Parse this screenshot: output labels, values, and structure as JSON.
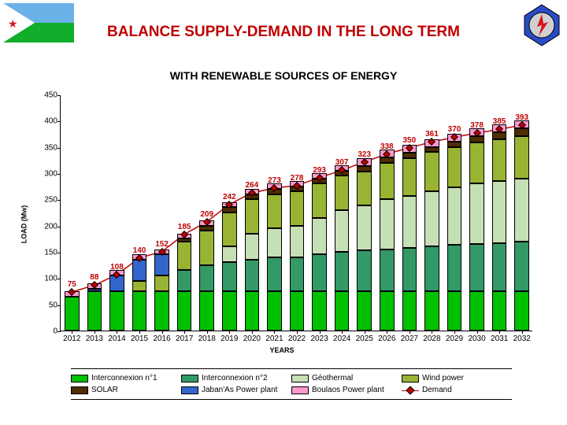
{
  "title": "BALANCE SUPPLY-DEMAND IN THE LONG TERM",
  "subtitle": "WITH RENEWABLE SOURCES OF ENERGY",
  "title_color": "#c00000",
  "subtitle_color": "#000000",
  "chart": {
    "type": "stacked-bar-with-line",
    "y_label": "LOAD (Mw)",
    "x_label": "YEARS",
    "ylim": [
      0,
      450
    ],
    "ytick_step": 50,
    "background_color": "#ffffff",
    "axis_color": "#000000",
    "label_fontsize": 10,
    "bar_width_ratio": 0.65,
    "years": [
      "2012",
      "2013",
      "2014",
      "2015",
      "2016",
      "2017",
      "2018",
      "2019",
      "2020",
      "2021",
      "2022",
      "2023",
      "2024",
      "2025",
      "2026",
      "2027",
      "2028",
      "2029",
      "2030",
      "2031",
      "2032"
    ],
    "series": [
      {
        "name": "Interconnexion n°1",
        "color": "#00c000"
      },
      {
        "name": "Interconnexion n°2",
        "color": "#339966"
      },
      {
        "name": "Géothermal",
        "color": "#c5e0b4"
      },
      {
        "name": "Wind power",
        "color": "#99b433"
      },
      {
        "name": "SOLAR",
        "color": "#4f2d00"
      },
      {
        "name": "Jaban'As Power plant",
        "color": "#3366cc"
      },
      {
        "name": "Boulaos Power plant",
        "color": "#ff99cc"
      },
      {
        "name": "Demand",
        "color": "#c00000"
      }
    ],
    "stacks": [
      {
        "inter1": 65,
        "inter2": 0,
        "geo": 0,
        "wind": 0,
        "solar": 0,
        "jaban": 0,
        "boulaos": 10
      },
      {
        "inter1": 75,
        "inter2": 0,
        "geo": 0,
        "wind": 0,
        "solar": 0,
        "jaban": 5,
        "boulaos": 10
      },
      {
        "inter1": 75,
        "inter2": 0,
        "geo": 0,
        "wind": 0,
        "solar": 0,
        "jaban": 30,
        "boulaos": 10
      },
      {
        "inter1": 75,
        "inter2": 0,
        "geo": 0,
        "wind": 20,
        "solar": 0,
        "jaban": 40,
        "boulaos": 10
      },
      {
        "inter1": 75,
        "inter2": 0,
        "geo": 0,
        "wind": 30,
        "solar": 0,
        "jaban": 40,
        "boulaos": 10
      },
      {
        "inter1": 75,
        "inter2": 40,
        "geo": 0,
        "wind": 55,
        "solar": 5,
        "jaban": 0,
        "boulaos": 10
      },
      {
        "inter1": 75,
        "inter2": 50,
        "geo": 0,
        "wind": 65,
        "solar": 10,
        "jaban": 0,
        "boulaos": 10
      },
      {
        "inter1": 75,
        "inter2": 55,
        "geo": 30,
        "wind": 65,
        "solar": 10,
        "jaban": 0,
        "boulaos": 10
      },
      {
        "inter1": 75,
        "inter2": 60,
        "geo": 50,
        "wind": 65,
        "solar": 10,
        "jaban": 0,
        "boulaos": 10
      },
      {
        "inter1": 75,
        "inter2": 65,
        "geo": 55,
        "wind": 65,
        "solar": 10,
        "jaban": 0,
        "boulaos": 10
      },
      {
        "inter1": 75,
        "inter2": 65,
        "geo": 60,
        "wind": 65,
        "solar": 10,
        "jaban": 0,
        "boulaos": 10
      },
      {
        "inter1": 75,
        "inter2": 70,
        "geo": 70,
        "wind": 65,
        "solar": 10,
        "jaban": 0,
        "boulaos": 10
      },
      {
        "inter1": 75,
        "inter2": 75,
        "geo": 80,
        "wind": 65,
        "solar": 10,
        "jaban": 0,
        "boulaos": 10
      },
      {
        "inter1": 75,
        "inter2": 78,
        "geo": 85,
        "wind": 65,
        "solar": 10,
        "jaban": 0,
        "boulaos": 15
      },
      {
        "inter1": 75,
        "inter2": 80,
        "geo": 95,
        "wind": 70,
        "solar": 10,
        "jaban": 0,
        "boulaos": 15
      },
      {
        "inter1": 75,
        "inter2": 82,
        "geo": 100,
        "wind": 72,
        "solar": 10,
        "jaban": 0,
        "boulaos": 15
      },
      {
        "inter1": 75,
        "inter2": 85,
        "geo": 105,
        "wind": 75,
        "solar": 10,
        "jaban": 0,
        "boulaos": 15
      },
      {
        "inter1": 75,
        "inter2": 88,
        "geo": 110,
        "wind": 77,
        "solar": 10,
        "jaban": 0,
        "boulaos": 15
      },
      {
        "inter1": 75,
        "inter2": 90,
        "geo": 115,
        "wind": 78,
        "solar": 12,
        "jaban": 0,
        "boulaos": 15
      },
      {
        "inter1": 75,
        "inter2": 92,
        "geo": 118,
        "wind": 80,
        "solar": 13,
        "jaban": 0,
        "boulaos": 15
      },
      {
        "inter1": 75,
        "inter2": 95,
        "geo": 120,
        "wind": 80,
        "solar": 15,
        "jaban": 0,
        "boulaos": 15
      }
    ],
    "demand": [
      75,
      88,
      108,
      140,
      152,
      185,
      209,
      242,
      264,
      273,
      278,
      293,
      307,
      323,
      338,
      350,
      361,
      370,
      378,
      385,
      393
    ],
    "demand_label_color": "#c00000",
    "demand_marker_color": "#c00000",
    "stack_order": [
      "inter1",
      "inter2",
      "geo",
      "wind",
      "solar",
      "jaban",
      "boulaos"
    ],
    "stack_colors": {
      "inter1": "#00c000",
      "inter2": "#339966",
      "geo": "#c5e0b4",
      "wind": "#99b433",
      "solar": "#4f2d00",
      "jaban": "#3366cc",
      "boulaos": "#ff99cc"
    }
  },
  "legend_items": [
    {
      "label": "Interconnexion n°1",
      "color": "#00c000",
      "type": "box"
    },
    {
      "label": "Interconnexion n°2",
      "color": "#339966",
      "type": "box"
    },
    {
      "label": "Géothermal",
      "color": "#c5e0b4",
      "type": "box"
    },
    {
      "label": "Wind power",
      "color": "#99b433",
      "type": "box"
    },
    {
      "label": "SOLAR",
      "color": "#4f2d00",
      "type": "box"
    },
    {
      "label": "Jaban'As Power plant",
      "color": "#3366cc",
      "type": "box"
    },
    {
      "label": "Boulaos Power plant",
      "color": "#ff99cc",
      "type": "box"
    },
    {
      "label": "Demand",
      "color": "#c00000",
      "type": "line"
    }
  ]
}
